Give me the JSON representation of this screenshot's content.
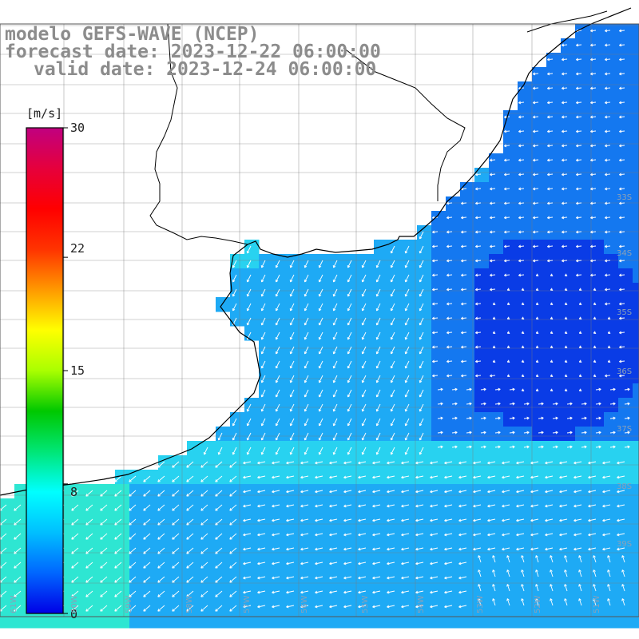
{
  "title": {
    "line1": "modelo GEFS-WAVE (NCEP)",
    "line2": "forecast date: 2023-12-22 06:00:00",
    "line3": "valid date: 2023-12-24 06:00:00"
  },
  "colorbar": {
    "unit": "[m/s]",
    "ticks": [
      "30",
      "22",
      "15",
      "8",
      "0"
    ],
    "tick_values": [
      30,
      22,
      15,
      8,
      0
    ],
    "range": [
      0,
      30
    ],
    "colors": [
      "#0000e6",
      "#0066ff",
      "#00bfff",
      "#00ffff",
      "#00e676",
      "#00c800",
      "#aaff00",
      "#ffff00",
      "#ff9900",
      "#ff3300",
      "#ff0000",
      "#e6003c",
      "#c00080"
    ]
  },
  "grid": {
    "lat_labels": [
      "33S",
      "34S",
      "35S",
      "36S",
      "37S",
      "38S",
      "39S"
    ],
    "lon_labels": [
      "61W",
      "60W",
      "59W",
      "58W",
      "57W",
      "56W",
      "55W",
      "54W",
      "53W",
      "52W",
      "51W"
    ]
  },
  "field": {
    "variable": "wind speed and direction",
    "colors": {
      "weak": "#0a3ce6",
      "medium": "#1478f0",
      "moderate": "#1eaaf5",
      "fresh": "#28d2f0",
      "strong": "#2ee6d2"
    }
  }
}
